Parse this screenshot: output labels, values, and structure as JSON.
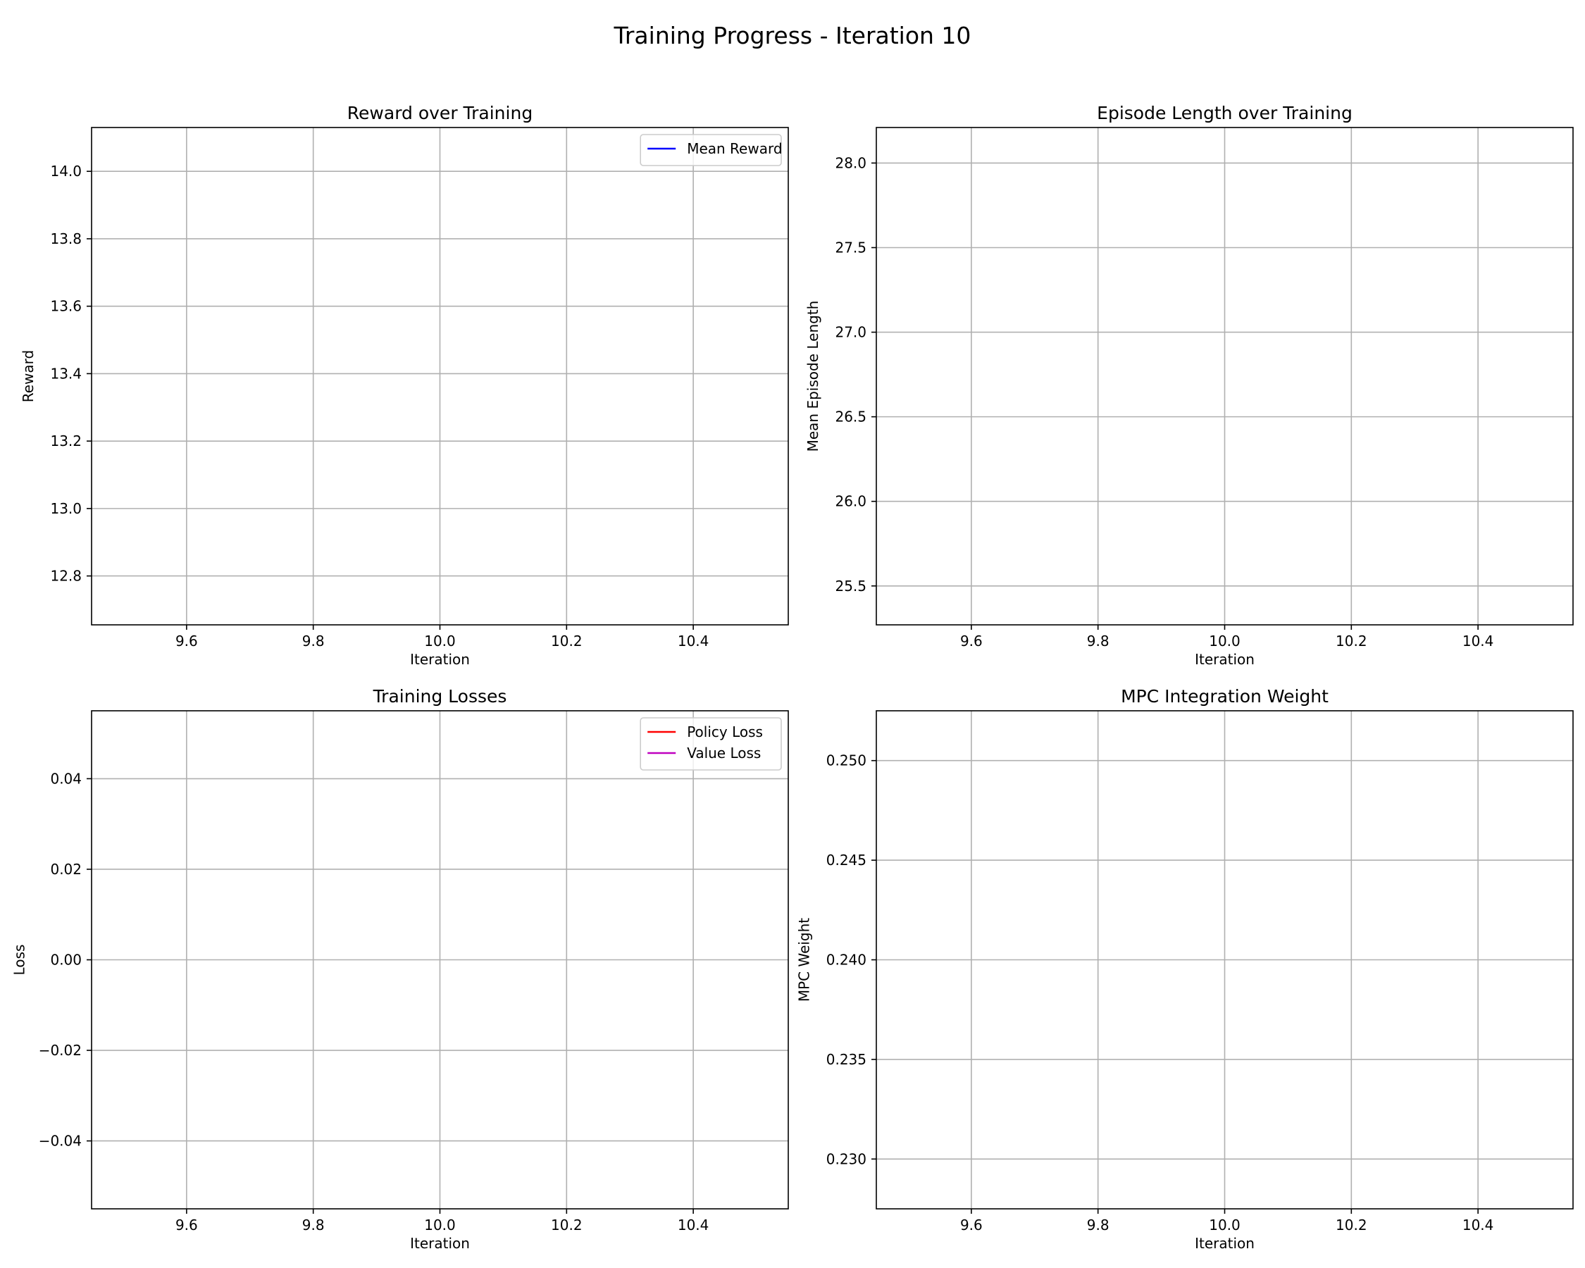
{
  "figure": {
    "suptitle": "Training Progress - Iteration 10"
  },
  "chart_data": [
    {
      "type": "line",
      "title": "Reward over Training",
      "xlabel": "Iteration",
      "ylabel": "Reward",
      "xlim": [
        9.45,
        10.55
      ],
      "ylim": [
        12.655,
        14.13
      ],
      "xticks": [
        9.6,
        9.8,
        10.0,
        10.2,
        10.4
      ],
      "xtick_labels": [
        "9.6",
        "9.8",
        "10.0",
        "10.2",
        "10.4"
      ],
      "yticks": [
        12.8,
        13.0,
        13.2,
        13.4,
        13.6,
        13.8,
        14.0
      ],
      "ytick_labels": [
        "12.8",
        "13.0",
        "13.2",
        "13.4",
        "13.6",
        "13.8",
        "14.0"
      ],
      "grid": true,
      "legend_position": "upper-right",
      "series": [
        {
          "name": "Mean Reward",
          "color": "#0000ff",
          "x": [],
          "y": []
        }
      ]
    },
    {
      "type": "line",
      "title": "Episode Length over Training",
      "xlabel": "Iteration",
      "ylabel": "Mean Episode Length",
      "xlim": [
        9.45,
        10.55
      ],
      "ylim": [
        25.27,
        28.21
      ],
      "xticks": [
        9.6,
        9.8,
        10.0,
        10.2,
        10.4
      ],
      "xtick_labels": [
        "9.6",
        "9.8",
        "10.0",
        "10.2",
        "10.4"
      ],
      "yticks": [
        25.5,
        26.0,
        26.5,
        27.0,
        27.5,
        28.0
      ],
      "ytick_labels": [
        "25.5",
        "26.0",
        "26.5",
        "27.0",
        "27.5",
        "28.0"
      ],
      "grid": true,
      "legend_position": "none",
      "series": []
    },
    {
      "type": "line",
      "title": "Training Losses",
      "xlabel": "Iteration",
      "ylabel": "Loss",
      "xlim": [
        9.45,
        10.55
      ],
      "ylim": [
        -0.055,
        0.055
      ],
      "xticks": [
        9.6,
        9.8,
        10.0,
        10.2,
        10.4
      ],
      "xtick_labels": [
        "9.6",
        "9.8",
        "10.0",
        "10.2",
        "10.4"
      ],
      "yticks": [
        -0.04,
        -0.02,
        0.0,
        0.02,
        0.04
      ],
      "ytick_labels": [
        "−0.04",
        "−0.02",
        "0.00",
        "0.02",
        "0.04"
      ],
      "grid": true,
      "legend_position": "upper-right",
      "series": [
        {
          "name": "Policy Loss",
          "color": "#ff0000",
          "x": [],
          "y": []
        },
        {
          "name": "Value Loss",
          "color": "#bf00bf",
          "x": [],
          "y": []
        }
      ]
    },
    {
      "type": "line",
      "title": "MPC Integration Weight",
      "xlabel": "Iteration",
      "ylabel": "MPC Weight",
      "xlim": [
        9.45,
        10.55
      ],
      "ylim": [
        0.2275,
        0.2525
      ],
      "xticks": [
        9.6,
        9.8,
        10.0,
        10.2,
        10.4
      ],
      "xtick_labels": [
        "9.6",
        "9.8",
        "10.0",
        "10.2",
        "10.4"
      ],
      "yticks": [
        0.23,
        0.235,
        0.24,
        0.245,
        0.25
      ],
      "ytick_labels": [
        "0.230",
        "0.235",
        "0.240",
        "0.245",
        "0.250"
      ],
      "grid": true,
      "legend_position": "none",
      "series": []
    }
  ]
}
